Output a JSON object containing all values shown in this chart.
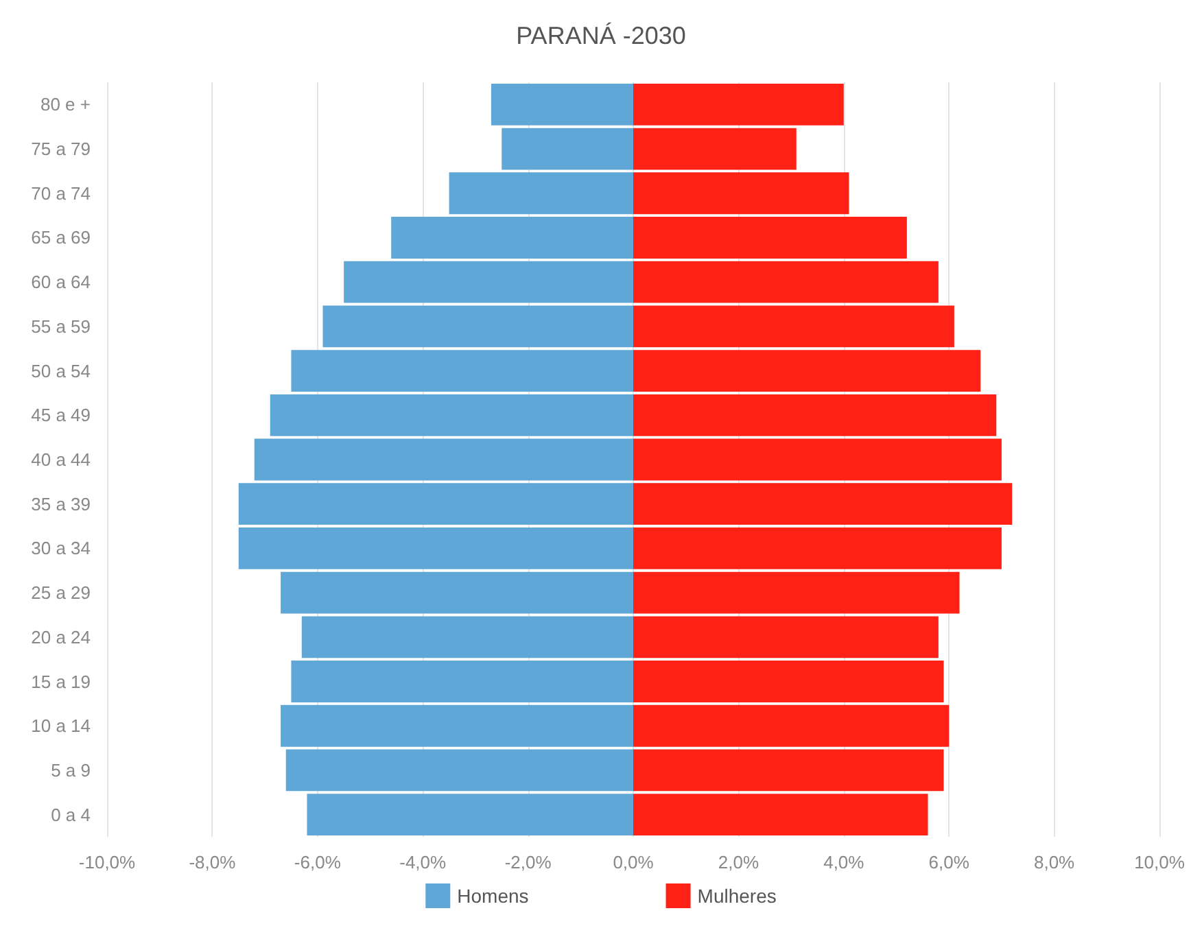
{
  "chart_data": {
    "type": "bar",
    "orientation": "horizontal",
    "stacked": true,
    "title": "PARANÁ -2030",
    "categories": [
      "80 e +",
      "75 a 79",
      "70 a 74",
      "65 a 69",
      "60 a 64",
      "55 a 59",
      "50 a 54",
      "45 a 49",
      "40 a 44",
      "35 a 39",
      "30 a 34",
      "25 a 29",
      "20 a 24",
      "15 a 19",
      "10 a 14",
      "5 a 9",
      "0 a 4"
    ],
    "series": [
      {
        "name": "Homens",
        "color": "#5fa7d7",
        "values": [
          -2.7,
          -2.5,
          -3.5,
          -4.6,
          -5.5,
          -5.9,
          -6.5,
          -6.9,
          -7.2,
          -7.5,
          -7.5,
          -6.7,
          -6.3,
          -6.5,
          -6.7,
          -6.6,
          -6.2
        ]
      },
      {
        "name": "Mulheres",
        "color": "#fd2116",
        "values": [
          4.0,
          3.1,
          4.1,
          5.2,
          5.8,
          6.1,
          6.6,
          6.9,
          7.0,
          7.2,
          7.0,
          6.2,
          5.8,
          5.9,
          6.0,
          5.9,
          5.6
        ]
      }
    ],
    "xlim": [
      -10,
      10
    ],
    "xticks": [
      {
        "value": -10,
        "label": "-10,0%"
      },
      {
        "value": -8,
        "label": "-8,0%"
      },
      {
        "value": -6,
        "label": "-6,0%"
      },
      {
        "value": -4,
        "label": "-4,0%"
      },
      {
        "value": -2,
        "label": "-2,0%"
      },
      {
        "value": 0,
        "label": "0,0%"
      },
      {
        "value": 2,
        "label": "2,0%"
      },
      {
        "value": 4,
        "label": "4,0%"
      },
      {
        "value": 6,
        "label": "6,0%"
      },
      {
        "value": 8,
        "label": "8,0%"
      },
      {
        "value": 10,
        "label": "10,0%"
      }
    ],
    "grid": "x",
    "legend": "bottom"
  }
}
